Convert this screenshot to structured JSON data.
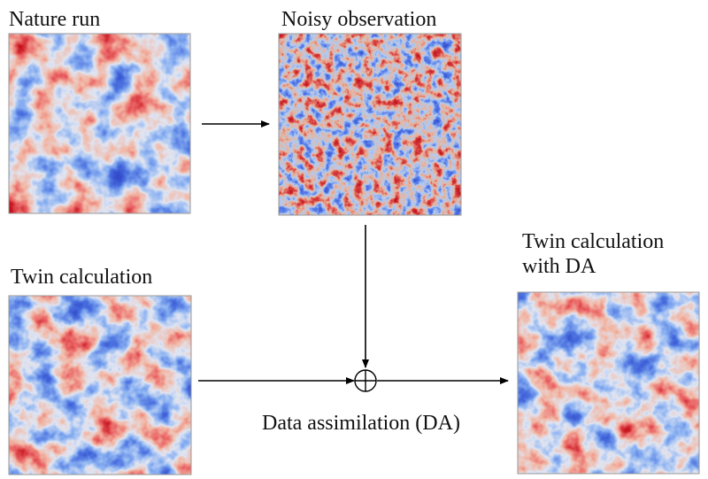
{
  "panels": [
    {
      "title_lines": [
        "Nature run"
      ]
    },
    {
      "title_lines": [
        "Noisy observation"
      ]
    },
    {
      "title_lines": [
        "Twin calculation"
      ]
    },
    {
      "title_lines": [
        "Twin calculation",
        "with DA"
      ]
    }
  ],
  "operator_label": "Data assimilation (DA)"
}
